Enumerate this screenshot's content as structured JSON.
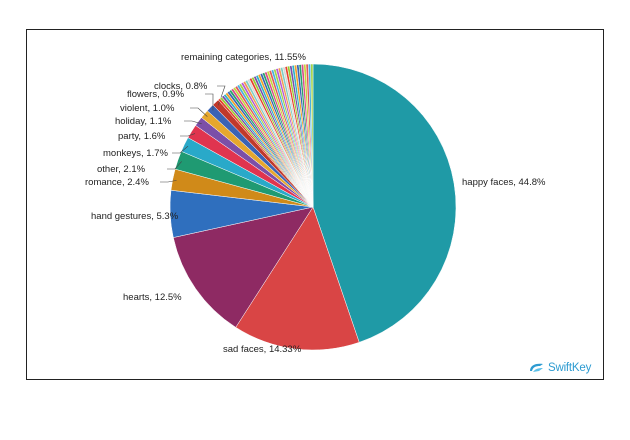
{
  "chart_data": {
    "type": "pie",
    "slices": [
      {
        "label": "happy faces, 44.8%",
        "value": 44.8,
        "color": "#1f9aa6"
      },
      {
        "label": "sad faces, 14.33%",
        "value": 14.33,
        "color": "#d94545"
      },
      {
        "label": "hearts, 12.5%",
        "value": 12.5,
        "color": "#8e2a63"
      },
      {
        "label": "hand gestures, 5.3%",
        "value": 5.3,
        "color": "#2f6fbe"
      },
      {
        "label": "romance, 2.4%",
        "value": 2.4,
        "color": "#d08a19"
      },
      {
        "label": "other, 2.1%",
        "value": 2.1,
        "color": "#1f9a72"
      },
      {
        "label": "monkeys, 1.7%",
        "value": 1.7,
        "color": "#29a9c9"
      },
      {
        "label": "party, 1.6%",
        "value": 1.6,
        "color": "#e0344f"
      },
      {
        "label": "holiday, 1.1%",
        "value": 1.1,
        "color": "#7b4fa8"
      },
      {
        "label": "violent, 1.0%",
        "value": 1.0,
        "color": "#e6a72e"
      },
      {
        "label": "flowers, 0.9%",
        "value": 0.9,
        "color": "#3a63b5"
      },
      {
        "label": "clocks, 0.8%",
        "value": 0.8,
        "color": "#c0392b"
      },
      {
        "label": "remaining categories, 11.55%",
        "value": 11.55,
        "color": "#b3c8d8",
        "striped": true
      }
    ],
    "stripe_colors": [
      "#e7402f",
      "#9acd32",
      "#7b4fa8",
      "#2fb3c9",
      "#f0a12a",
      "#3a63b5",
      "#28a46a",
      "#d94f8a",
      "#c8d63c",
      "#e05a5a",
      "#4ab0e0",
      "#a3d44a",
      "#b65cd6",
      "#f29b55",
      "#7fd0c4",
      "#d8d8d8"
    ]
  },
  "logo": {
    "text": "SwiftKey"
  }
}
